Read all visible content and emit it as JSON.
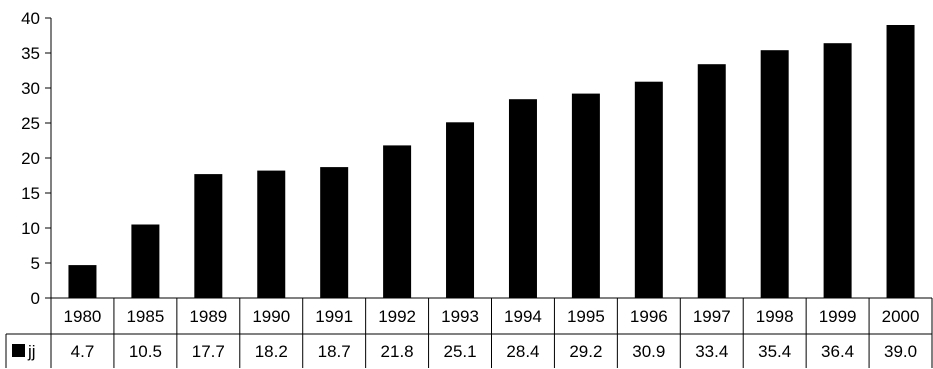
{
  "chart_data": {
    "type": "bar",
    "categories": [
      "1980",
      "1985",
      "1989",
      "1990",
      "1991",
      "1992",
      "1993",
      "1994",
      "1995",
      "1996",
      "1997",
      "1998",
      "1999",
      "2000"
    ],
    "series": [
      {
        "name": "jj",
        "values": [
          4.7,
          10.5,
          17.7,
          18.2,
          18.7,
          21.8,
          25.1,
          28.4,
          29.2,
          30.9,
          33.4,
          35.4,
          36.4,
          39.0
        ],
        "value_labels": [
          "4.7",
          "10.5",
          "17.7",
          "18.2",
          "18.7",
          "21.8",
          "25.1",
          "28.4",
          "29.2",
          "30.9",
          "33.4",
          "35.4",
          "36.4",
          "39.0"
        ],
        "color": "#000000"
      }
    ],
    "y_ticks": [
      "0",
      "5",
      "10",
      "15",
      "20",
      "25",
      "30",
      "35",
      "40"
    ],
    "ylim": [
      0,
      40
    ],
    "grid": false,
    "legend": "data-table",
    "title": "",
    "xlabel": "",
    "ylabel": ""
  }
}
